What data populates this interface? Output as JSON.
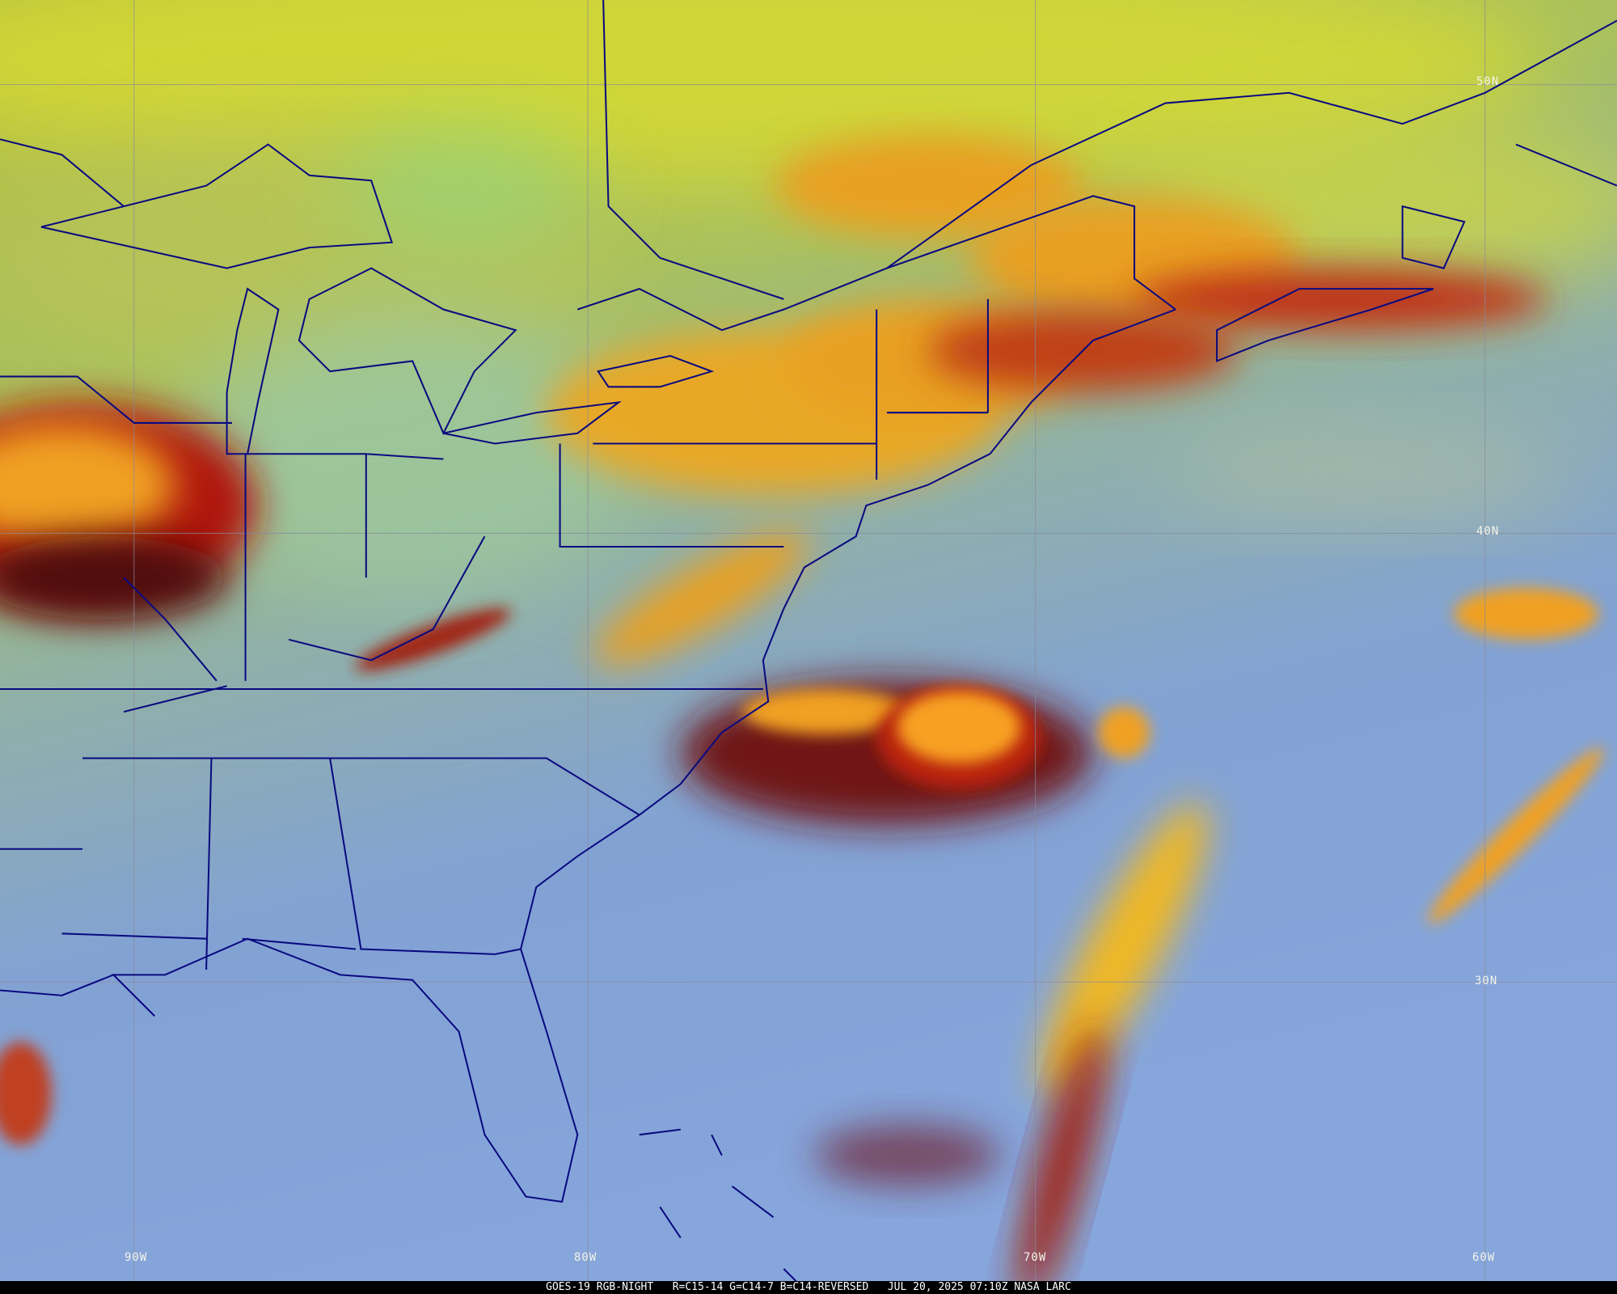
{
  "map": {
    "latitude_labels": [
      "50N",
      "40N",
      "30N"
    ],
    "longitude_labels": [
      "90W",
      "80W",
      "70W",
      "60W"
    ],
    "border_color": "#0a0a80",
    "gridline_color": "#8a8a9a"
  },
  "caption": {
    "product": "GOES-19 RGB-NIGHT",
    "channels": "R=C15-14 G=C14-7 B=C14-REVERSED",
    "timestamp": "JUL 20, 2025 07:10Z",
    "source": "NASA LARC"
  }
}
